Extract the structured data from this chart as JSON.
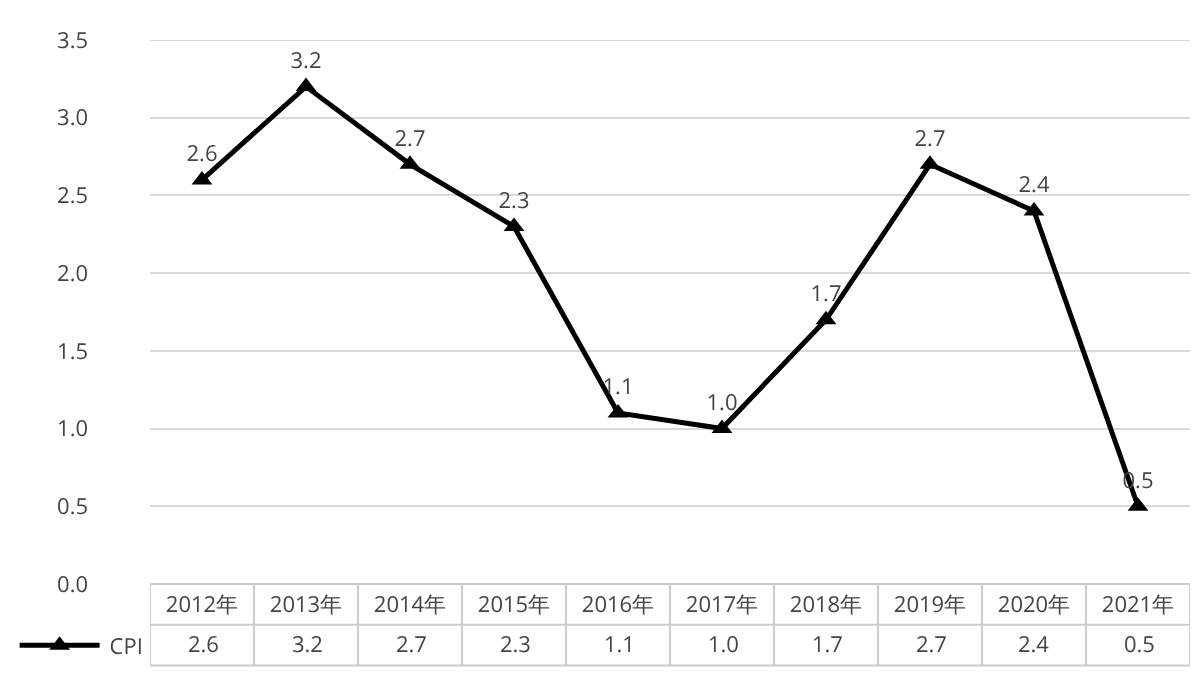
{
  "chart_data": {
    "type": "line",
    "categories": [
      "2012年",
      "2013年",
      "2014年",
      "2015年",
      "2016年",
      "2017年",
      "2018年",
      "2019年",
      "2020年",
      "2021年"
    ],
    "series": [
      {
        "name": "CPI",
        "color": "#000000",
        "values": [
          2.6,
          3.2,
          2.7,
          2.3,
          1.1,
          1.0,
          1.7,
          2.7,
          2.4,
          0.5
        ],
        "value_labels": [
          "2.6",
          "3.2",
          "2.7",
          "2.3",
          "1.1",
          "1.0",
          "1.7",
          "2.7",
          "2.4",
          "0.5"
        ]
      }
    ],
    "ylim": [
      0,
      3.5
    ],
    "yticks": [
      {
        "value": 0,
        "label": "0.0"
      },
      {
        "value": 0.5,
        "label": "0.5"
      },
      {
        "value": 1,
        "label": "1.0"
      },
      {
        "value": 1.5,
        "label": "1.5"
      },
      {
        "value": 2,
        "label": "2.0"
      },
      {
        "value": 2.5,
        "label": "2.5"
      },
      {
        "value": 3,
        "label": "3.0"
      },
      {
        "value": 3.5,
        "label": "3.5"
      }
    ],
    "grid": "y",
    "legend": "bottom left",
    "marker": "triangle",
    "line_style": "solid"
  }
}
